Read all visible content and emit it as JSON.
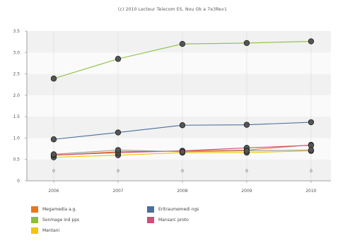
{
  "chart_data": {
    "type": "line",
    "title": "(c) 2010 Lecteur Telecom ES, Nou Ok a 7e3Rev1",
    "x": [
      "2006",
      "2007",
      "2008",
      "2009",
      "2010"
    ],
    "ylim": [
      0,
      3.5
    ],
    "yticks": [
      "0",
      "0.5",
      "1.0",
      "1.5",
      "2.0",
      "2.5",
      "3.0",
      "3.5"
    ],
    "grid": "horizontal bands",
    "legend_position": "bottom",
    "point_labels": [
      "0",
      "0",
      "0",
      "0",
      "0"
    ],
    "series": [
      {
        "name": "Megamedia a.g.",
        "color": "#e8771e",
        "values": [
          0.6,
          0.68,
          0.7,
          0.72,
          0.84
        ]
      },
      {
        "name": "Sonmage ind pps",
        "color": "#8dbd3c",
        "values": [
          2.39,
          2.85,
          3.2,
          3.22,
          3.26
        ]
      },
      {
        "name": "Mantani",
        "color": "#f2c600",
        "values": [
          0.55,
          0.6,
          0.66,
          0.66,
          0.7
        ]
      },
      {
        "name": "Eritraumemedi ngs",
        "color": "#4a6f9d",
        "values": [
          0.97,
          1.13,
          1.3,
          1.31,
          1.37
        ]
      },
      {
        "name": "Mansarc proto",
        "color": "#cf4e7a",
        "values": [
          0.6,
          0.66,
          0.7,
          0.77,
          0.83
        ]
      },
      {
        "name": "",
        "color": "#999999",
        "values": [
          0.62,
          0.72,
          0.68,
          0.7,
          0.72
        ]
      }
    ]
  }
}
